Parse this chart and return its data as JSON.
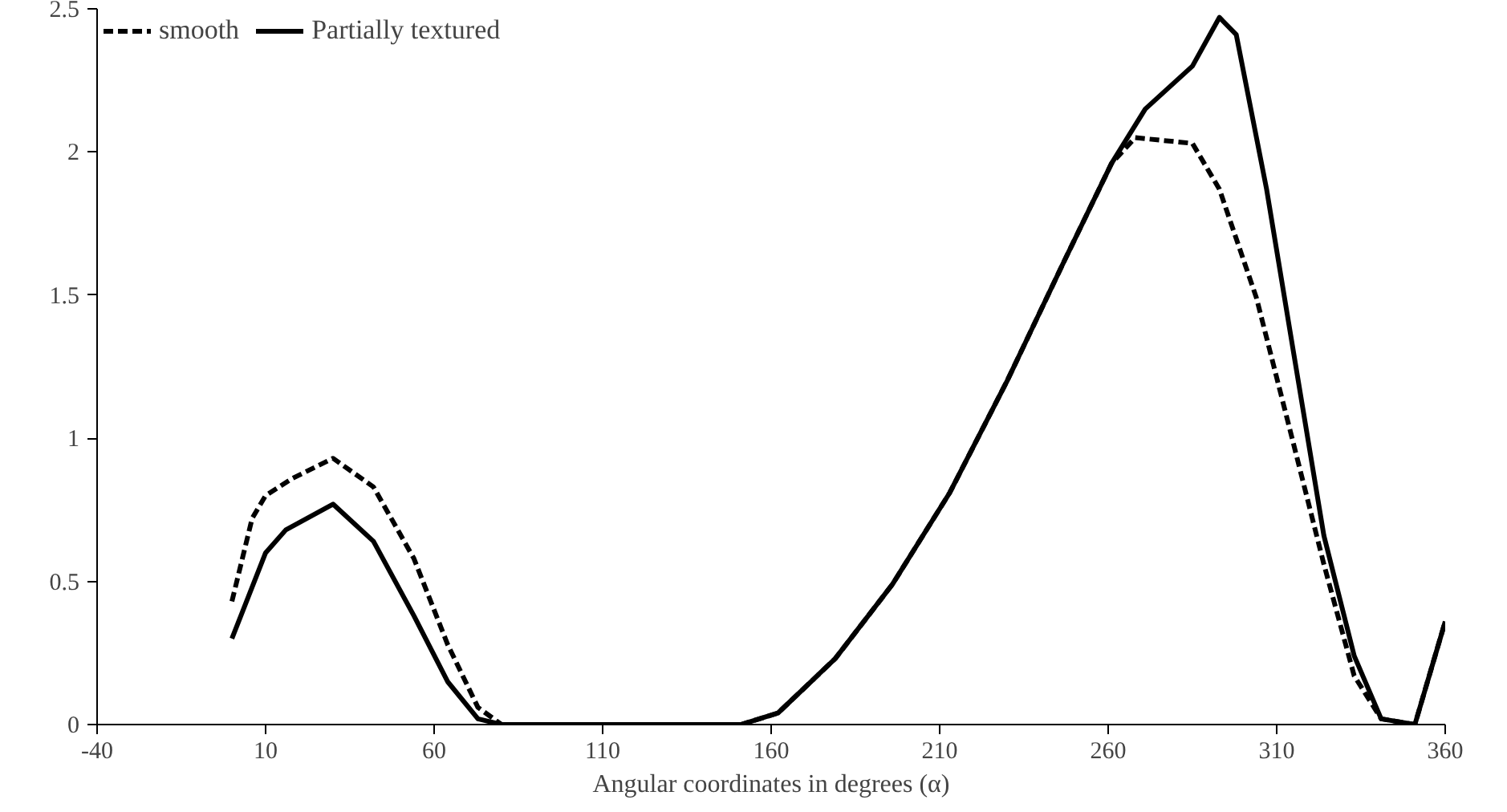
{
  "chart_data": {
    "type": "line",
    "xlabel": "Angular coordinates in degrees (α)",
    "xlim": [
      -40,
      360
    ],
    "xticks": [
      -40,
      10,
      60,
      110,
      160,
      210,
      260,
      310,
      360
    ],
    "ylim": [
      0,
      2.5
    ],
    "yticks": [
      0,
      0.5,
      1,
      1.5,
      2,
      2.5
    ],
    "grid": false,
    "legend": "top left",
    "marker": "none",
    "series": [
      {
        "name": "smooth",
        "color": "#000000",
        "line_style": "dashed",
        "x": [
          0,
          6,
          10,
          18,
          30,
          42,
          54,
          64,
          73,
          80,
          120,
          151,
          162,
          179,
          196,
          213,
          230,
          247,
          261,
          268,
          285,
          293,
          304,
          315,
          324,
          333,
          341,
          351,
          360
        ],
        "values": [
          0.43,
          0.72,
          0.8,
          0.86,
          0.93,
          0.83,
          0.58,
          0.28,
          0.06,
          0,
          0,
          0,
          0.04,
          0.23,
          0.49,
          0.81,
          1.2,
          1.62,
          1.96,
          2.05,
          2.03,
          1.87,
          1.49,
          0.98,
          0.56,
          0.17,
          0.02,
          0,
          0.36
        ]
      },
      {
        "name": "Partially textured",
        "color": "#000000",
        "line_style": "solid",
        "x": [
          0,
          10,
          16,
          30,
          42,
          54,
          64,
          73,
          80,
          120,
          151,
          162,
          179,
          196,
          213,
          230,
          247,
          261,
          271,
          285,
          293,
          298,
          307,
          315,
          324,
          333,
          341,
          351,
          360
        ],
        "values": [
          0.3,
          0.6,
          0.68,
          0.77,
          0.64,
          0.38,
          0.15,
          0.02,
          0,
          0,
          0,
          0.04,
          0.23,
          0.49,
          0.81,
          1.2,
          1.62,
          1.96,
          2.15,
          2.3,
          2.47,
          2.41,
          1.87,
          1.3,
          0.66,
          0.24,
          0.02,
          0,
          0.36
        ]
      }
    ]
  }
}
